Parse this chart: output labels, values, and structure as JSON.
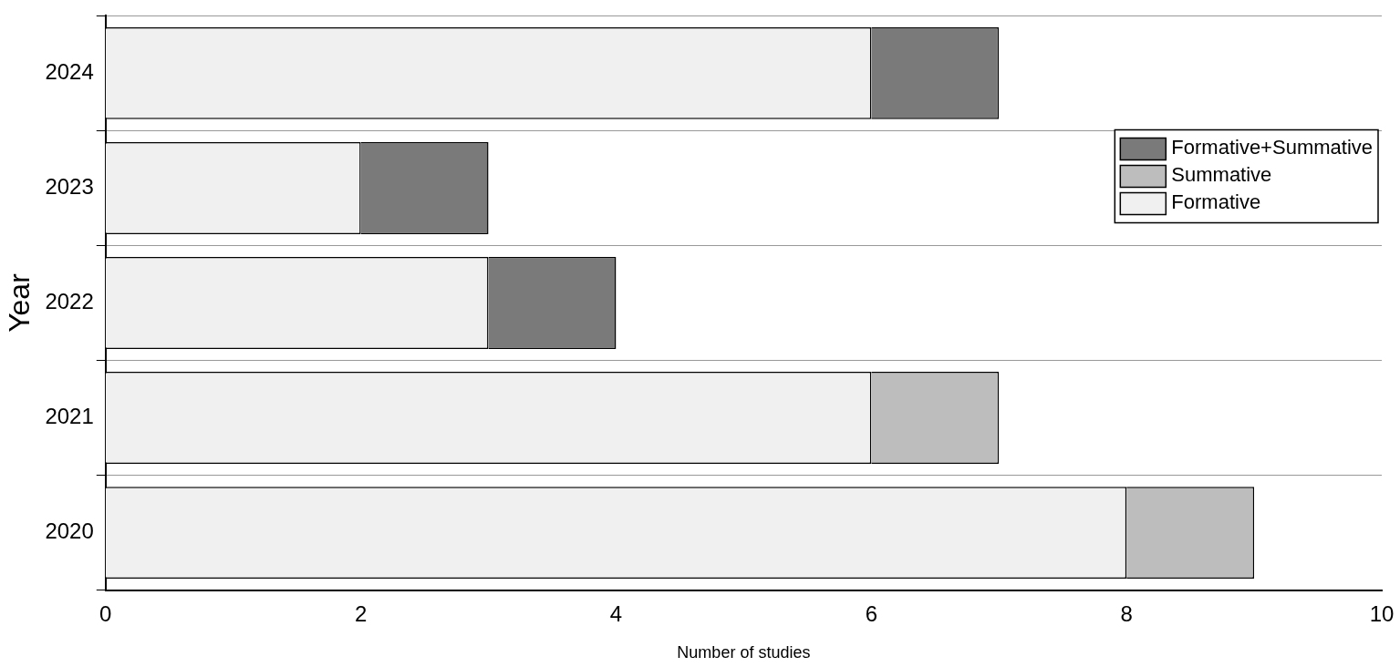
{
  "chart_data": {
    "type": "bar",
    "orientation": "horizontal",
    "stacked": true,
    "categories": [
      "2024",
      "2023",
      "2022",
      "2021",
      "2020"
    ],
    "series": [
      {
        "name": "Formative",
        "color": "#f0f0f0",
        "values": [
          6,
          2,
          3,
          6,
          8
        ]
      },
      {
        "name": "Summative",
        "color": "#bdbdbd",
        "values": [
          null,
          null,
          null,
          1,
          1
        ]
      },
      {
        "name": "Formative+Summative",
        "color": "#7a7a7a",
        "values": [
          1,
          1,
          1,
          null,
          null
        ]
      }
    ],
    "xlabel": "Number of studies",
    "ylabel": "Year",
    "xlim": [
      0,
      10
    ],
    "xticks": [
      0,
      2,
      4,
      6,
      8,
      10
    ],
    "grid": "y",
    "legend": "top right"
  }
}
